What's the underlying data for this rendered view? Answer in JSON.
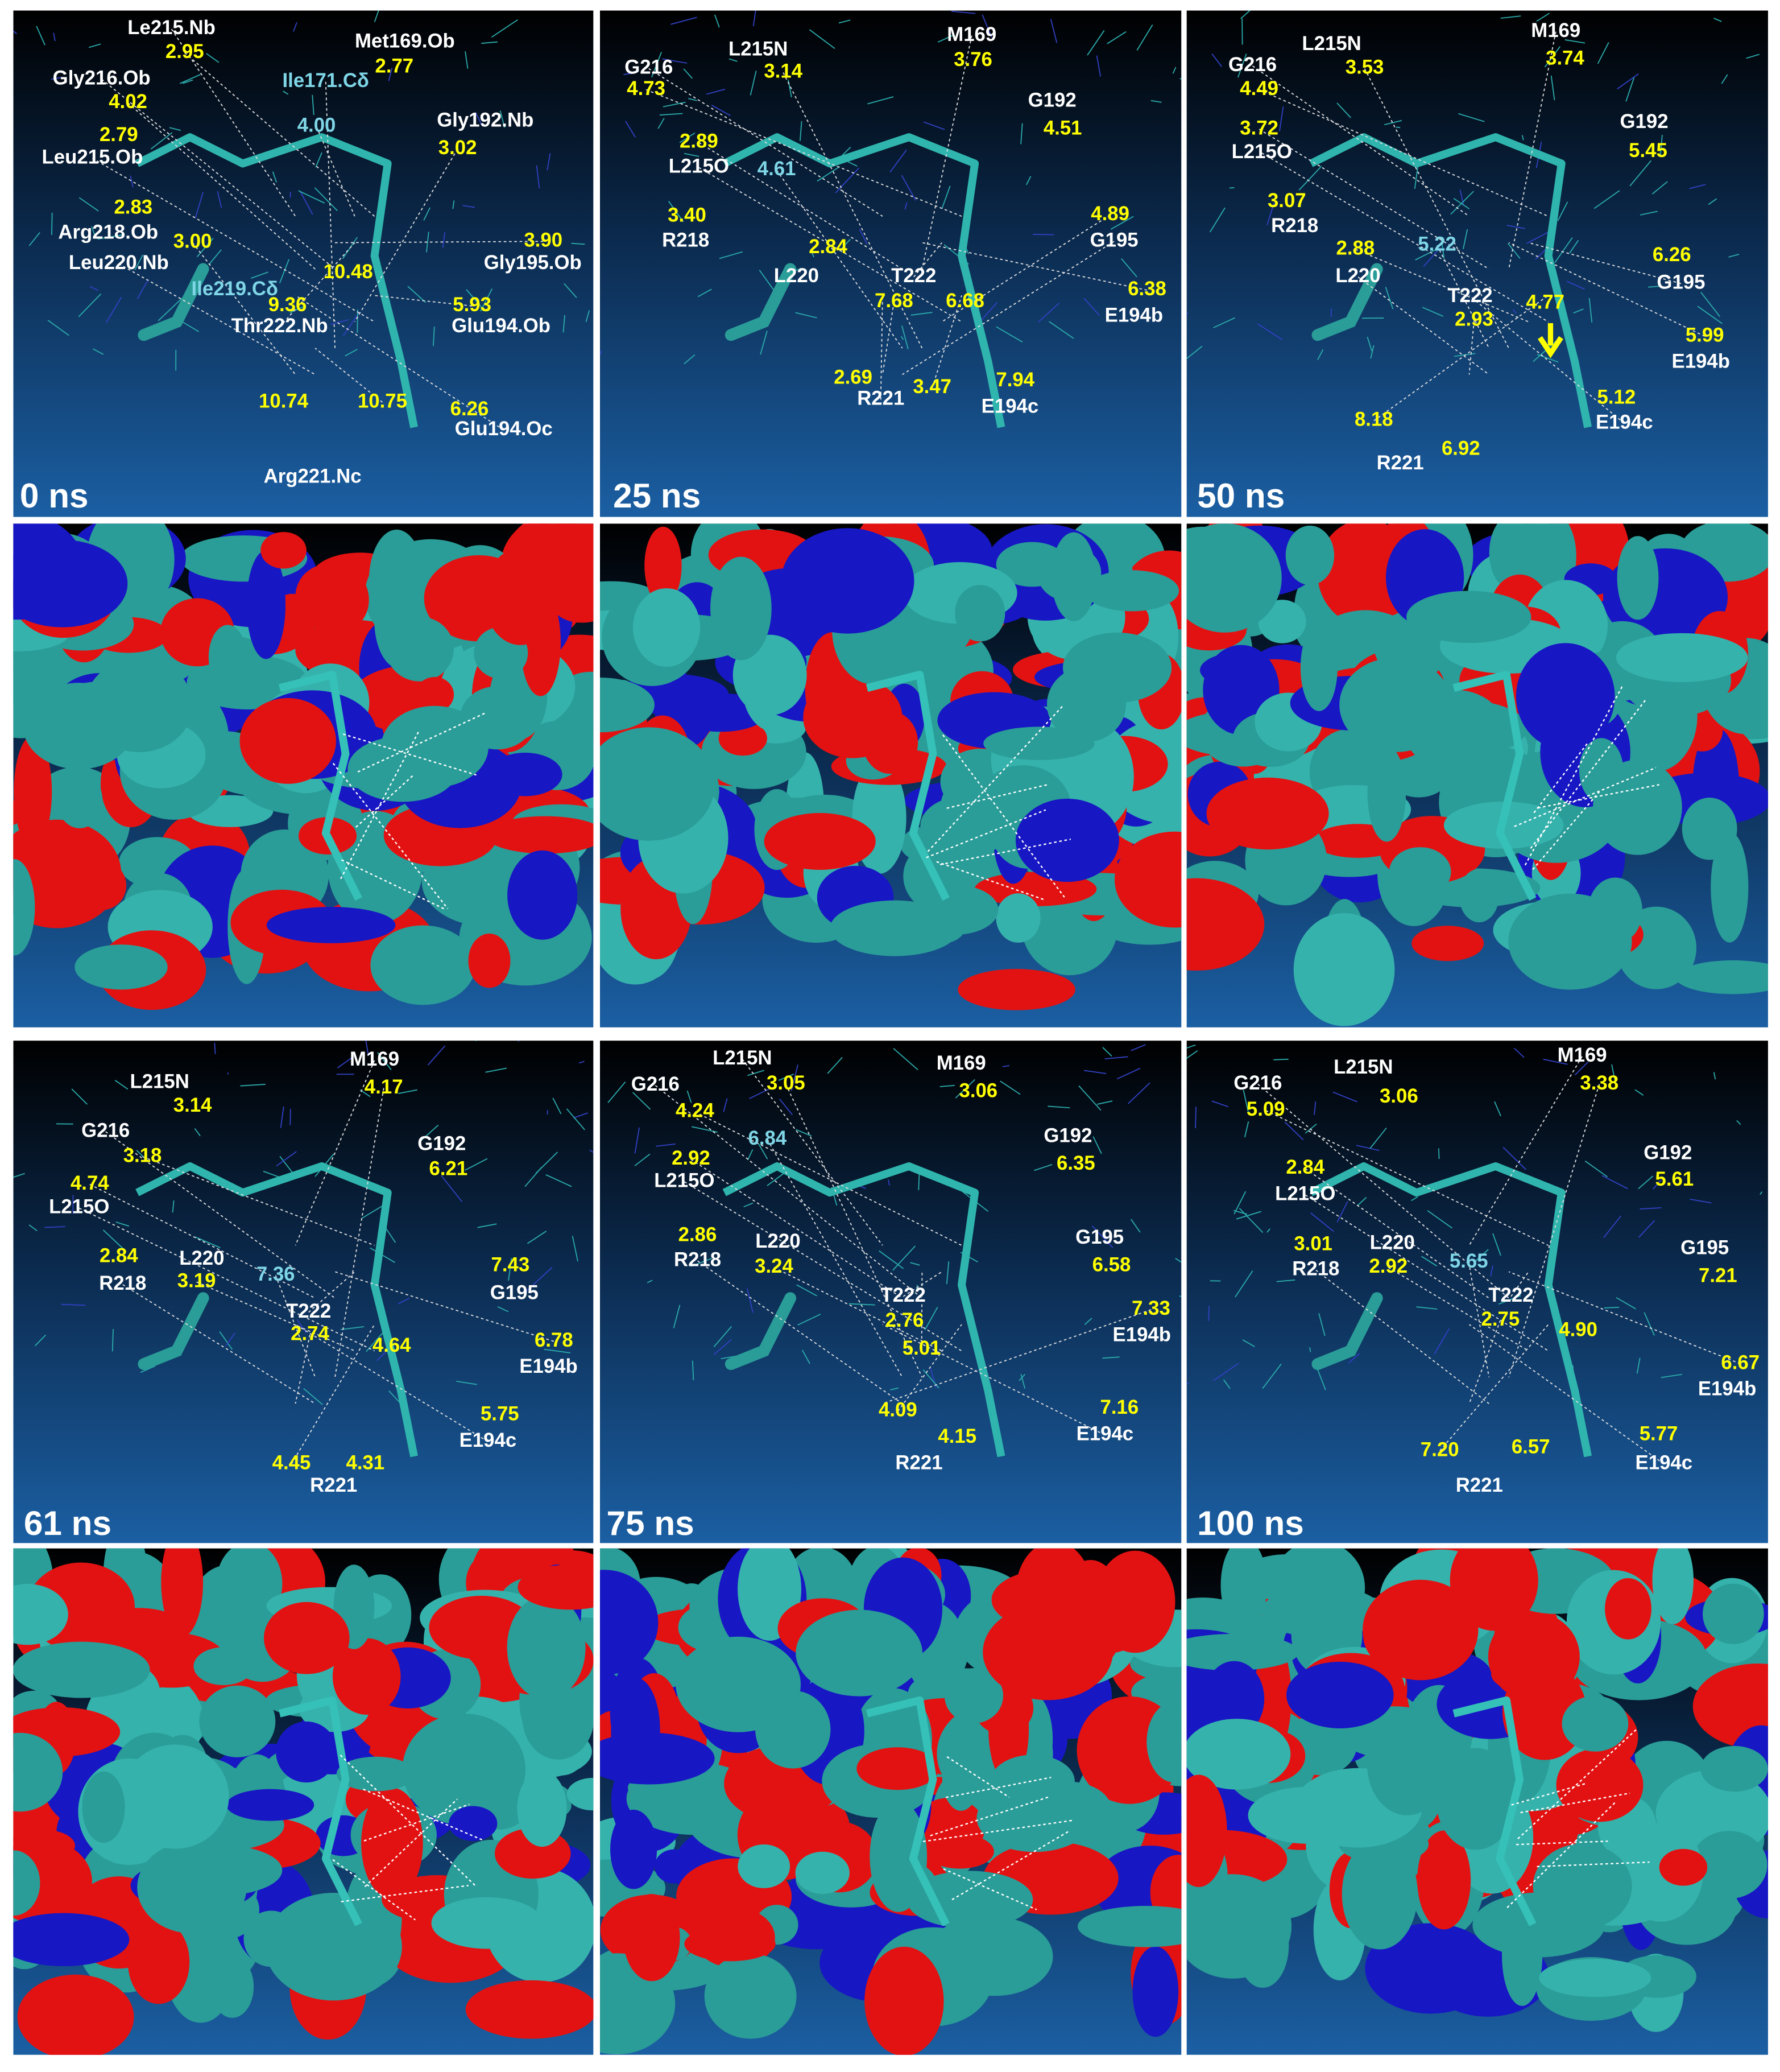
{
  "panels": [
    {
      "time": "0 ns",
      "labels": [
        "Le215.Nb",
        "Met169.Ob",
        "Gly216.Ob",
        "Gly192.Nb",
        "Leu215.Ob",
        "Arg218.Ob",
        "Leu220.Nb",
        "Gly195.Ob",
        "Thr222.Nb",
        "Glu194.Ob",
        "Glu194.Oc",
        "Arg221.Nc",
        "Ile171.Cδ",
        "Ile219.Cδ",
        "2.95",
        "2.77",
        "4.02",
        "2.79",
        "3.02",
        "2.83",
        "3.00",
        "10.48",
        "3.90",
        "9.36",
        "5.93",
        "10.74",
        "10.75",
        "6.26",
        "4.00"
      ]
    },
    {
      "time": "25 ns",
      "labels": [
        "G216",
        "L215N",
        "M169",
        "G192",
        "L215O",
        "R218",
        "G195",
        "L220",
        "T222",
        "E194b",
        "R221",
        "E194c",
        "3.14",
        "3.76",
        "4.73",
        "4.51",
        "2.89",
        "3.40",
        "4.89",
        "2.84",
        "7.68",
        "6.68",
        "6.38",
        "2.69",
        "3.47",
        "7.94",
        "4.61"
      ]
    },
    {
      "time": "50 ns",
      "labels": [
        "G216",
        "L215N",
        "M169",
        "G192",
        "L215O",
        "R218",
        "L220",
        "T222",
        "G195",
        "E194b",
        "E194c",
        "R221",
        "3.53",
        "3.74",
        "4.49",
        "5.45",
        "3.72",
        "3.07",
        "2.88",
        "6.26",
        "2.93",
        "4.77",
        "5.99",
        "5.12",
        "8.18",
        "6.92",
        "5.22"
      ]
    },
    {
      "time": "61 ns",
      "labels": [
        "M169",
        "L215N",
        "G216",
        "G192",
        "L215O",
        "L220",
        "R218",
        "G195",
        "T222",
        "E194b",
        "E194c",
        "R221",
        "4.17",
        "3.14",
        "3.18",
        "6.21",
        "4.74",
        "2.84",
        "3.19",
        "7.43",
        "2.74",
        "4.64",
        "6.78",
        "5.75",
        "4.45",
        "4.31",
        "7.36"
      ]
    },
    {
      "time": "75 ns",
      "labels": [
        "L215N",
        "M169",
        "G216",
        "G192",
        "L215O",
        "L220",
        "R218",
        "G195",
        "T222",
        "E194b",
        "E194c",
        "R221",
        "3.05",
        "3.06",
        "4.24",
        "6.35",
        "2.92",
        "2.86",
        "3.24",
        "6.58",
        "7.33",
        "2.76",
        "5.01",
        "7.16",
        "4.09",
        "4.15",
        "6.84"
      ]
    },
    {
      "time": "100 ns",
      "labels": [
        "M169",
        "L215N",
        "G216",
        "G192",
        "L215O",
        "L220",
        "R218",
        "G195",
        "T222",
        "E194b",
        "E194c",
        "R221",
        "3.38",
        "3.06",
        "5.09",
        "5.61",
        "2.84",
        "3.01",
        "2.92",
        "7.21",
        "2.75",
        "4.90",
        "6.67",
        "5.77",
        "7.20",
        "6.57",
        "5.65"
      ]
    }
  ]
}
